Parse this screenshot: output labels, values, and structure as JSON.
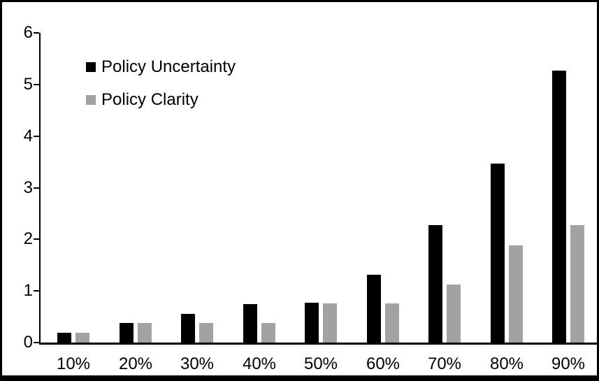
{
  "chart_data": {
    "type": "bar",
    "title": "",
    "xlabel": "",
    "ylabel": "",
    "categories": [
      "10%",
      "20%",
      "30%",
      "40%",
      "50%",
      "60%",
      "70%",
      "80%",
      "90%"
    ],
    "series": [
      {
        "name": "Policy Uncertainty",
        "color": "#000000",
        "values": [
          0.19,
          0.38,
          0.56,
          0.75,
          0.77,
          1.32,
          2.28,
          3.47,
          5.27
        ]
      },
      {
        "name": "Policy Clarity",
        "color": "#a2a2a2",
        "values": [
          0.19,
          0.38,
          0.38,
          0.38,
          0.76,
          0.76,
          1.13,
          1.88,
          2.28
        ]
      }
    ],
    "ylim": [
      0,
      6
    ],
    "yticks": [
      0,
      1,
      2,
      3,
      4,
      5,
      6
    ],
    "grid": false,
    "legend_position": "inside-top-left",
    "frame_color": "#000000",
    "background_color": "#ffffff"
  }
}
